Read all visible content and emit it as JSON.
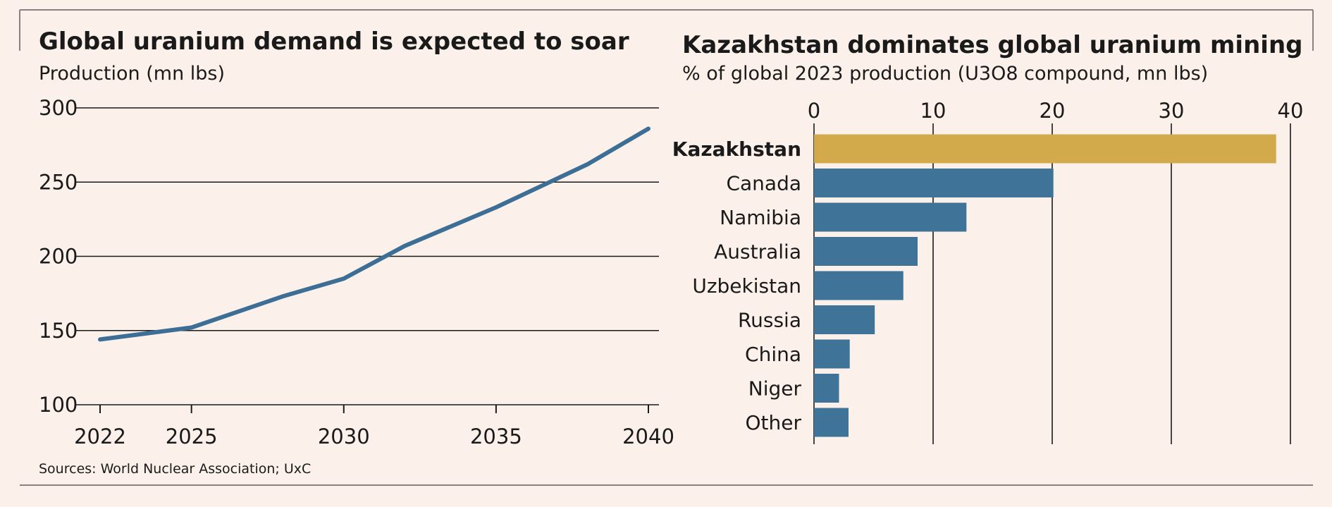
{
  "colors": {
    "background": "#fbf1ea",
    "line": "#3d6f96",
    "bar": "#3f7397",
    "highlight": "#d3aa4b",
    "text": "#1a1a1a"
  },
  "source": "Sources: World Nuclear Association; UxC",
  "chart_data": [
    {
      "type": "line",
      "title": "Global uranium demand is expected to soar",
      "subtitle": "Production (mn lbs)",
      "x_ticks": [
        2022,
        2025,
        2030,
        2035,
        2040
      ],
      "y_ticks": [
        100,
        150,
        200,
        250,
        300
      ],
      "ylim": [
        100,
        300
      ],
      "xlim": [
        2022,
        2040
      ],
      "grid": true,
      "series": [
        {
          "x": [
            2022,
            2025,
            2028,
            2030,
            2032,
            2035,
            2038,
            2040
          ],
          "y": [
            144,
            152,
            173,
            185,
            207,
            233,
            262,
            286
          ]
        }
      ]
    },
    {
      "type": "bar",
      "orientation": "horizontal",
      "title": "Kazakhstan dominates global uranium mining",
      "subtitle": "% of global 2023 production (U3O8 compound, mn lbs)",
      "x_ticks": [
        0,
        10,
        20,
        30,
        40
      ],
      "xlim": [
        0,
        40
      ],
      "grid": true,
      "categories": [
        "Kazakhstan",
        "Canada",
        "Namibia",
        "Australia",
        "Uzbekistan",
        "Russia",
        "China",
        "Niger",
        "Other"
      ],
      "values": [
        38.8,
        20.1,
        12.8,
        8.7,
        7.5,
        5.1,
        3.0,
        2.1,
        2.9
      ],
      "highlight": "Kazakhstan"
    }
  ]
}
